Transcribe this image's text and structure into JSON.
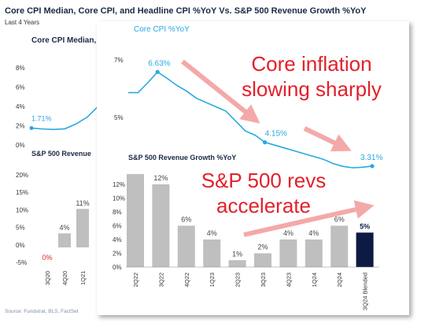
{
  "header": {
    "title": "Core CPI Median, Core CPI, and Headline CPI %YoY Vs. S&P 500 Revenue Growth %YoY",
    "subtitle": "Last 4 Years",
    "bg_panel_title": "Core CPI Median, Core CPI,",
    "bg_rev_title": "S&P 500 Revenue"
  },
  "source": "Source: Fundstrat, BLS, FactSet",
  "colors": {
    "line": "#29a8e0",
    "bar": "#bfbfbf",
    "bar_highlight": "#0d1a44",
    "inset_title": "#29a8e0",
    "callout": "#e3202a",
    "arrow": "#f4a9a9"
  },
  "callouts": {
    "inflation": [
      "Core inflation",
      "slowing sharply"
    ],
    "revenue": [
      "S&P 500 revs",
      "accelerate"
    ]
  },
  "chart_data": [
    {
      "id": "bg_cpi",
      "type": "line",
      "title": "",
      "yticks": [
        "8%",
        "6%",
        "4%",
        "2%",
        "0%"
      ],
      "ylim": [
        0,
        9
      ],
      "data_labels": [
        "1.71%"
      ],
      "x": [
        0,
        1,
        2,
        3,
        4,
        5,
        6
      ],
      "y": [
        1.71,
        1.6,
        1.55,
        1.62,
        2.2,
        3.0,
        4.3
      ]
    },
    {
      "id": "bg_rev",
      "type": "bar",
      "categories": [
        "3Q20",
        "4Q20",
        "1Q21"
      ],
      "values": [
        0,
        4,
        11
      ],
      "value_labels": [
        "0%",
        "4%",
        "11%"
      ],
      "yticks": [
        "20%",
        "15%",
        "10%",
        "5%",
        "0%",
        "-5%"
      ],
      "ylim": [
        -5,
        25
      ]
    },
    {
      "id": "core_cpi",
      "type": "line",
      "title": "Core CPI %YoY",
      "yticks": [
        "7%",
        "5%"
      ],
      "ylim": [
        2.8,
        7.2
      ],
      "x": [
        0,
        1,
        2,
        3,
        4,
        5,
        6,
        7,
        8,
        9,
        10,
        11,
        12,
        13,
        14,
        15,
        16,
        17,
        18,
        19,
        20,
        21,
        22,
        23,
        24,
        25
      ],
      "y": [
        5.9,
        5.9,
        6.25,
        6.63,
        6.4,
        6.15,
        5.95,
        5.7,
        5.55,
        5.4,
        5.25,
        4.9,
        4.55,
        4.4,
        4.15,
        4.05,
        3.95,
        3.85,
        3.75,
        3.65,
        3.55,
        3.4,
        3.3,
        3.25,
        3.27,
        3.31
      ],
      "annotations": [
        {
          "index": 3,
          "label": "6.63%"
        },
        {
          "index": 14,
          "label": "4.15%"
        },
        {
          "index": 25,
          "label": "3.31%"
        }
      ]
    },
    {
      "id": "rev_growth",
      "type": "bar",
      "title": "S&P 500 Revenue Growth %YoY",
      "categories": [
        "2Q22",
        "3Q22",
        "4Q22",
        "1Q23",
        "2Q23",
        "3Q23",
        "4Q23",
        "1Q24",
        "2Q24",
        "3Q24 Blended"
      ],
      "values": [
        13.5,
        12,
        6,
        4,
        1,
        2,
        4,
        4,
        6,
        5
      ],
      "value_labels": [
        "",
        "12%",
        "6%",
        "4%",
        "1%",
        "2%",
        "4%",
        "4%",
        "6%",
        "5%"
      ],
      "highlight_index": 9,
      "yticks": [
        "12%",
        "10%",
        "8%",
        "6%",
        "4%",
        "2%",
        "0%"
      ],
      "ylim": [
        0,
        14
      ]
    }
  ]
}
